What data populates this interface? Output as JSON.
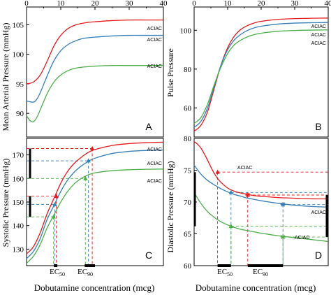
{
  "figure": {
    "xlabel": "Dobutamine concentration (mcg)",
    "ec50_label": "EC",
    "ec50_sub": "50",
    "ec90_label": "EC",
    "ec90_sub": "90"
  },
  "colors": {
    "red": "#e41a1c",
    "blue": "#377eb8",
    "green": "#4daf4a"
  },
  "chart_data": [
    {
      "panel": "A",
      "type": "line",
      "ylabel": "Mean Arterial Pressure (mmHg)",
      "xlim": [
        0,
        40
      ],
      "ylim": [
        86,
        108
      ],
      "xticks": [
        0,
        10,
        20,
        30,
        40
      ],
      "xticks_position": "top",
      "yticks": [
        90,
        95,
        100,
        105
      ],
      "series": [
        {
          "name": "ACIAC",
          "color": "red",
          "x": [
            0,
            2,
            4,
            6,
            8,
            10,
            12,
            14,
            16,
            18,
            20,
            25,
            30,
            35,
            40
          ],
          "y": [
            95,
            95.3,
            96.5,
            98.8,
            101.4,
            103.2,
            104.3,
            104.9,
            105.2,
            105.4,
            105.5,
            105.7,
            105.8,
            105.8,
            105.8
          ]
        },
        {
          "name": "ACIAC",
          "color": "blue",
          "x": [
            0,
            2,
            3,
            4,
            6,
            8,
            10,
            12,
            14,
            16,
            18,
            20,
            25,
            30,
            35,
            40
          ],
          "y": [
            92.1,
            91.9,
            92.4,
            93.5,
            96.3,
            98.9,
            100.6,
            101.6,
            102.2,
            102.6,
            102.8,
            102.9,
            103.1,
            103.2,
            103.2,
            103.2
          ]
        },
        {
          "name": "ACIAC",
          "color": "green",
          "x": [
            0,
            1,
            2,
            3,
            4,
            6,
            8,
            10,
            12,
            14,
            16,
            18,
            20,
            25,
            30,
            35,
            40
          ],
          "y": [
            89.6,
            88.8,
            88.6,
            89.3,
            90.6,
            93.3,
            95.3,
            96.5,
            97.2,
            97.6,
            97.8,
            97.9,
            98.0,
            98.1,
            98.1,
            98.1,
            98.1
          ]
        }
      ]
    },
    {
      "panel": "B",
      "type": "line",
      "ylabel": "Pulse Pressure",
      "xlim": [
        0,
        40
      ],
      "ylim": [
        45,
        112
      ],
      "xticks": [
        0,
        10,
        20,
        30,
        40
      ],
      "xticks_position": "top",
      "yticks": [
        60,
        80,
        100
      ],
      "series": [
        {
          "name": "ACIAC",
          "color": "red",
          "x": [
            0,
            2,
            4,
            6,
            8,
            10,
            12,
            14,
            16,
            18,
            20,
            25,
            30,
            35,
            40
          ],
          "y": [
            48,
            51,
            58,
            70,
            82,
            91,
            97,
            100.5,
            102.5,
            103.8,
            104.6,
            105.6,
            106,
            106.2,
            106.3
          ]
        },
        {
          "name": "ACIAC",
          "color": "blue",
          "x": [
            0,
            2,
            4,
            6,
            8,
            10,
            12,
            14,
            16,
            18,
            20,
            25,
            30,
            35,
            40
          ],
          "y": [
            50,
            53,
            60,
            71,
            82,
            90,
            95,
            98,
            100,
            101.3,
            102.1,
            103.2,
            103.7,
            103.9,
            104
          ]
        },
        {
          "name": "ACIAC",
          "color": "green",
          "x": [
            0,
            2,
            4,
            6,
            8,
            10,
            12,
            14,
            16,
            18,
            20,
            25,
            30,
            35,
            40
          ],
          "y": [
            52,
            55,
            62,
            72,
            81,
            88,
            92.5,
            95,
            96.7,
            97.8,
            98.5,
            99.5,
            99.9,
            100.1,
            100.2
          ]
        }
      ]
    },
    {
      "panel": "C",
      "type": "line",
      "ylabel": "Systolic Pressure (mmHg)",
      "xlim": [
        0,
        40
      ],
      "ylim": [
        123,
        177
      ],
      "yticks": [
        130,
        140,
        150,
        160,
        170
      ],
      "ec50_range": [
        8,
        9
      ],
      "ec90_range": [
        17,
        20
      ],
      "series": [
        {
          "name": "ACIAC",
          "color": "red",
          "x": [
            0,
            2,
            4,
            6,
            8,
            10,
            12,
            14,
            16,
            18,
            20,
            25,
            30,
            35,
            40
          ],
          "y": [
            128,
            131,
            137,
            145,
            151.5,
            158,
            163,
            166.5,
            169,
            171,
            172.3,
            174,
            174.8,
            175.2,
            175.4
          ],
          "markers": [
            {
              "x": 8.7,
              "y": 152.5
            },
            {
              "x": 19.2,
              "y": 172.7
            }
          ]
        },
        {
          "name": "ACIAC",
          "color": "blue",
          "x": [
            0,
            2,
            4,
            6,
            8,
            10,
            12,
            14,
            16,
            18,
            20,
            25,
            30,
            35,
            40
          ],
          "y": [
            126,
            129,
            134.5,
            142.5,
            148.5,
            154.5,
            159.3,
            162.8,
            165.3,
            167.2,
            168.6,
            170.6,
            171.5,
            171.9,
            172.1
          ],
          "markers": [
            {
              "x": 8.3,
              "y": 149
            },
            {
              "x": 18.1,
              "y": 167.5
            }
          ]
        },
        {
          "name": "ACIAC",
          "color": "green",
          "x": [
            0,
            2,
            4,
            6,
            8,
            10,
            12,
            14,
            16,
            18,
            20,
            25,
            30,
            35,
            40
          ],
          "y": [
            124,
            127,
            132,
            139,
            144.5,
            150,
            154.5,
            157.8,
            160,
            161.5,
            162.4,
            163.3,
            163.7,
            163.9,
            164
          ],
          "markers": [
            {
              "x": 7.9,
              "y": 143.7
            },
            {
              "x": 17.2,
              "y": 160
            }
          ]
        }
      ]
    },
    {
      "panel": "D",
      "type": "line",
      "ylabel": "Diastolic Pressure (mmHg)",
      "xlim": [
        0,
        40
      ],
      "ylim": [
        60,
        80
      ],
      "yticks": [
        60,
        65,
        70,
        75,
        80
      ],
      "ec50_range": [
        7,
        11
      ],
      "ec90_range": [
        16,
        26.5
      ],
      "series": [
        {
          "name": "ACIAC",
          "color": "red",
          "x": [
            0,
            1,
            2,
            3,
            4,
            5,
            6,
            7,
            8,
            10,
            12,
            14,
            16,
            18,
            20,
            25,
            30,
            35,
            40
          ],
          "y": [
            79.5,
            79.1,
            78.5,
            77.6,
            76.6,
            75.5,
            74.5,
            73.7,
            73.1,
            72.2,
            71.7,
            71.4,
            71.2,
            71.0,
            70.9,
            70.7,
            70.6,
            70.5,
            70.5
          ],
          "markers": [
            {
              "x": 7.0,
              "y": 74.7
            },
            {
              "x": 16.0,
              "y": 71.1
            }
          ]
        },
        {
          "name": "ACIAC",
          "color": "blue",
          "x": [
            0,
            2,
            4,
            6,
            8,
            10,
            12,
            14,
            16,
            18,
            20,
            25,
            30,
            35,
            40
          ],
          "y": [
            75.8,
            74.4,
            73.4,
            72.7,
            72.1,
            71.6,
            71.2,
            70.9,
            70.6,
            70.4,
            70.2,
            69.8,
            69.5,
            69.3,
            69.2
          ],
          "markers": [
            {
              "x": 11.0,
              "y": 71.5
            },
            {
              "x": 26.5,
              "y": 69.6
            }
          ]
        },
        {
          "name": "ACIAC",
          "color": "green",
          "x": [
            0,
            2,
            4,
            6,
            8,
            10,
            12,
            14,
            16,
            18,
            20,
            25,
            30,
            35,
            40
          ],
          "y": [
            71.5,
            69.8,
            68.5,
            67.6,
            66.9,
            66.4,
            66.0,
            65.7,
            65.5,
            65.3,
            65.1,
            64.7,
            64.4,
            64.1,
            63.8
          ],
          "markers": [
            {
              "x": 11.0,
              "y": 66.2
            },
            {
              "x": 26.5,
              "y": 64.5
            }
          ]
        }
      ]
    }
  ]
}
